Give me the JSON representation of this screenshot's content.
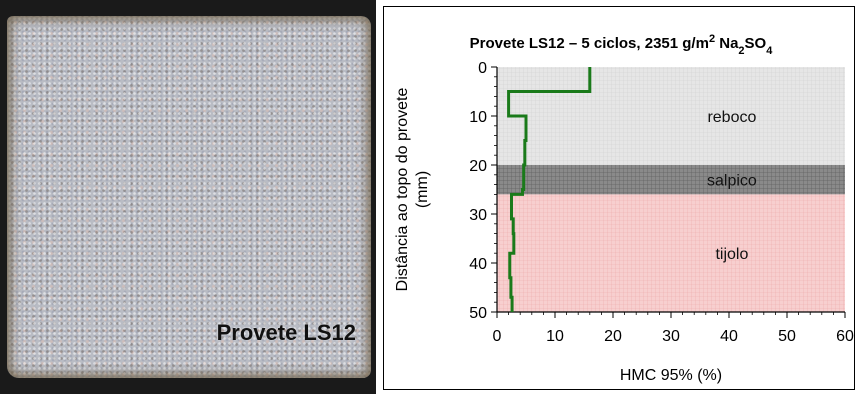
{
  "photo": {
    "label": "Provete LS12"
  },
  "chart_data": {
    "type": "line",
    "title_parts": [
      "Provete LS12 – 5 ciclos, 2351 g/m",
      "2",
      " Na",
      "2",
      "SO",
      "4"
    ],
    "xlabel": "HMC 95% (%)",
    "ylabel_line1": "Distância ao topo do provete",
    "ylabel_line2": "(mm)",
    "xlim": [
      0,
      60
    ],
    "ylim": [
      0,
      50
    ],
    "y_inverted": true,
    "xticks": [
      "0",
      "10",
      "20",
      "30",
      "40",
      "50",
      "60"
    ],
    "yticks": [
      "0",
      "10",
      "20",
      "30",
      "40",
      "50"
    ],
    "layers": [
      {
        "name": "reboco",
        "from": 0,
        "to": 20,
        "color": "#e6e6e6"
      },
      {
        "name": "salpico",
        "from": 20,
        "to": 26,
        "color": "#7f7f7f"
      },
      {
        "name": "tijolo",
        "from": 26,
        "to": 50,
        "color": "#f5c6c6"
      }
    ],
    "series": [
      {
        "color": "#1a7a1a",
        "points": [
          [
            16,
            0
          ],
          [
            16,
            5
          ],
          [
            2,
            5
          ],
          [
            2,
            10
          ],
          [
            5,
            10
          ],
          [
            5,
            15
          ],
          [
            4.8,
            15
          ],
          [
            4.8,
            20
          ],
          [
            4.6,
            20
          ],
          [
            4.6,
            25
          ],
          [
            4.4,
            25
          ],
          [
            4.4,
            26
          ],
          [
            2.5,
            26
          ],
          [
            2.5,
            31
          ],
          [
            2.8,
            31
          ],
          [
            2.8,
            34
          ],
          [
            2.9,
            34
          ],
          [
            2.9,
            38
          ],
          [
            2.2,
            38
          ],
          [
            2.2,
            43
          ],
          [
            2.4,
            43
          ],
          [
            2.4,
            47
          ],
          [
            2.6,
            47
          ],
          [
            2.6,
            50
          ]
        ]
      }
    ]
  }
}
